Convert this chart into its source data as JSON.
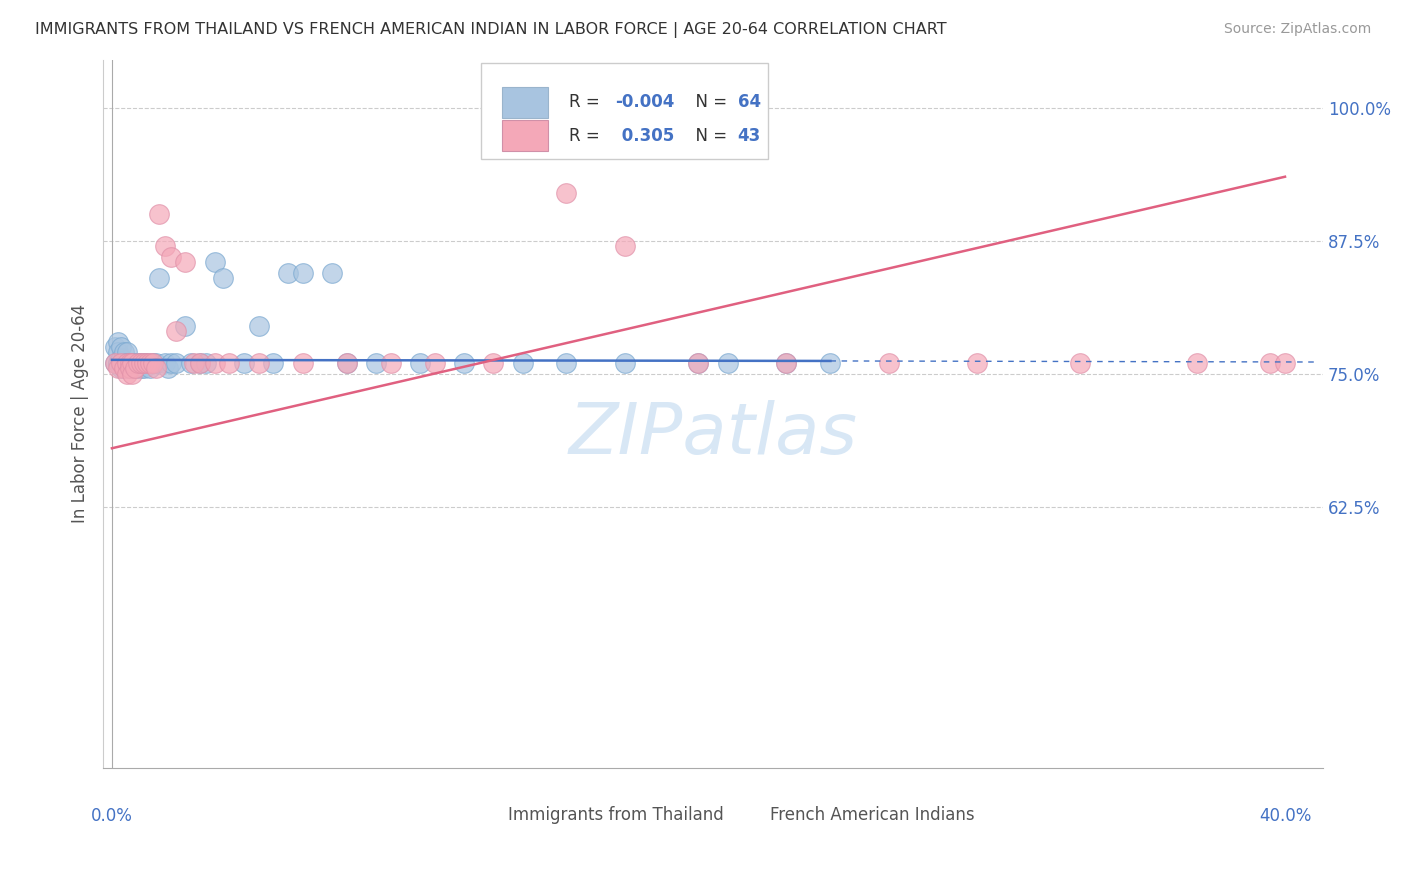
{
  "title": "IMMIGRANTS FROM THAILAND VS FRENCH AMERICAN INDIAN IN LABOR FORCE | AGE 20-64 CORRELATION CHART",
  "source": "Source: ZipAtlas.com",
  "ylabel": "In Labor Force | Age 20-64",
  "color_blue": "#a8c4e0",
  "color_pink": "#f4a8b8",
  "trendline_blue": "#4472c4",
  "trendline_pink": "#e06080",
  "watermark": "ZIPatlas",
  "ytick_vals": [
    0.625,
    0.75,
    0.875,
    1.0
  ],
  "ytick_labels": [
    "62.5%",
    "75.0%",
    "87.5%",
    "100.0%"
  ],
  "xlim": [
    0.0,
    0.41
  ],
  "ylim": [
    0.4,
    1.04
  ],
  "blue_x": [
    0.001,
    0.001,
    0.002,
    0.002,
    0.002,
    0.003,
    0.003,
    0.003,
    0.003,
    0.004,
    0.004,
    0.004,
    0.005,
    0.005,
    0.005,
    0.005,
    0.006,
    0.006,
    0.006,
    0.007,
    0.007,
    0.007,
    0.008,
    0.008,
    0.009,
    0.009,
    0.01,
    0.01,
    0.011,
    0.011,
    0.012,
    0.012,
    0.013,
    0.014,
    0.015,
    0.016,
    0.017,
    0.018,
    0.019,
    0.02,
    0.022,
    0.023,
    0.025,
    0.028,
    0.03,
    0.033,
    0.035,
    0.038,
    0.04,
    0.045,
    0.05,
    0.06,
    0.065,
    0.07,
    0.08,
    0.09,
    0.1,
    0.11,
    0.12,
    0.14,
    0.16,
    0.18,
    0.21,
    0.24
  ],
  "blue_y": [
    0.76,
    0.775,
    0.76,
    0.78,
    0.77,
    0.755,
    0.765,
    0.775,
    0.76,
    0.755,
    0.77,
    0.76,
    0.755,
    0.76,
    0.77,
    0.76,
    0.76,
    0.755,
    0.76,
    0.76,
    0.755,
    0.76,
    0.76,
    0.755,
    0.76,
    0.755,
    0.76,
    0.755,
    0.76,
    0.755,
    0.76,
    0.755,
    0.76,
    0.755,
    0.76,
    0.76,
    0.84,
    0.76,
    0.755,
    0.76,
    0.76,
    0.76,
    0.795,
    0.76,
    0.76,
    0.855,
    0.84,
    0.76,
    0.795,
    0.76,
    0.76,
    0.845,
    0.845,
    0.845,
    0.76,
    0.76,
    0.76,
    0.76,
    0.76,
    0.76,
    0.76,
    0.76,
    0.76,
    0.76
  ],
  "pink_x": [
    0.001,
    0.002,
    0.003,
    0.004,
    0.005,
    0.005,
    0.006,
    0.006,
    0.007,
    0.007,
    0.008,
    0.008,
    0.009,
    0.009,
    0.01,
    0.011,
    0.012,
    0.013,
    0.014,
    0.015,
    0.016,
    0.018,
    0.02,
    0.023,
    0.025,
    0.03,
    0.035,
    0.04,
    0.05,
    0.06,
    0.075,
    0.09,
    0.11,
    0.13,
    0.155,
    0.175,
    0.2,
    0.23,
    0.26,
    0.29,
    0.33,
    0.37,
    0.4
  ],
  "pink_y": [
    0.76,
    0.76,
    0.76,
    0.755,
    0.76,
    0.75,
    0.76,
    0.755,
    0.76,
    0.75,
    0.755,
    0.76,
    0.76,
    0.75,
    0.76,
    0.76,
    0.76,
    0.76,
    0.76,
    0.755,
    0.9,
    0.87,
    0.86,
    0.79,
    0.855,
    0.76,
    0.76,
    0.76,
    0.76,
    0.76,
    0.76,
    0.76,
    0.76,
    0.76,
    0.92,
    0.87,
    0.76,
    0.76,
    0.76,
    0.76,
    0.76,
    0.76,
    0.76
  ],
  "blue_trendline_x": [
    0.001,
    0.24
  ],
  "blue_trendline_y": [
    0.762,
    0.76
  ],
  "pink_trendline_x": [
    0.001,
    0.4
  ],
  "pink_trendline_y": [
    0.675,
    0.935
  ]
}
